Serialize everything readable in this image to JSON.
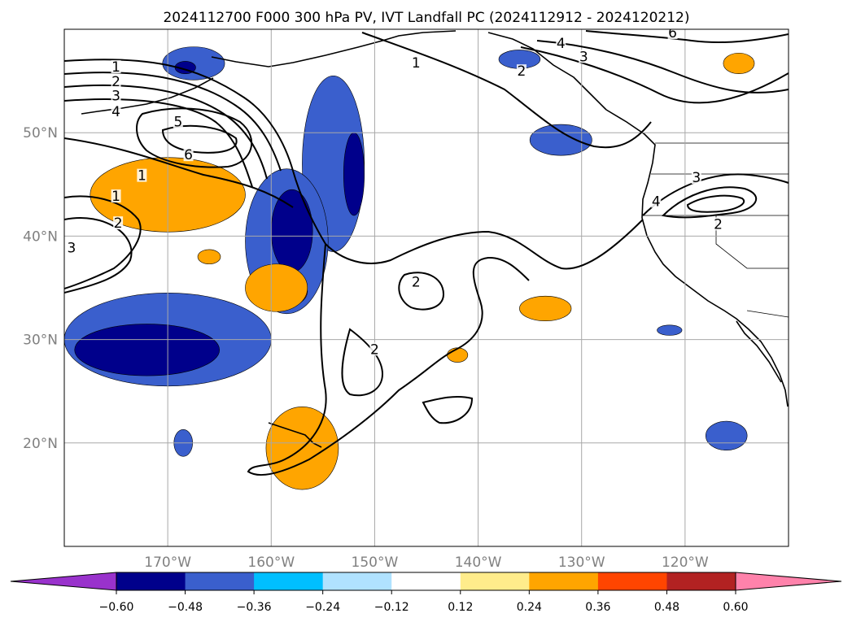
{
  "chart_data": {
    "type": "heatmap",
    "title": "2024112700 F000 300 hPa PV, IVT Landfall PC (2024112912 - 2024120212)",
    "xlabel": "",
    "ylabel": "",
    "map": {
      "lon_range": [
        -180,
        -110
      ],
      "lat_range": [
        10,
        60
      ],
      "x_ticks": [
        {
          "value": -170,
          "label": "170°W"
        },
        {
          "value": -160,
          "label": "160°W"
        },
        {
          "value": -150,
          "label": "150°W"
        },
        {
          "value": -140,
          "label": "140°W"
        },
        {
          "value": -130,
          "label": "130°W"
        },
        {
          "value": -120,
          "label": "120°W"
        }
      ],
      "y_ticks": [
        {
          "value": 20,
          "label": "20°N"
        },
        {
          "value": 30,
          "label": "30°N"
        },
        {
          "value": 40,
          "label": "40°N"
        },
        {
          "value": 50,
          "label": "50°N"
        }
      ],
      "grid": true,
      "tick_color": "#808080"
    },
    "colorbar": {
      "orientation": "horizontal",
      "extend": "both",
      "levels": [
        "−0.60",
        "−0.48",
        "−0.36",
        "−0.24",
        "−0.12",
        "0.12",
        "0.24",
        "0.36",
        "0.48",
        "0.60"
      ],
      "colors": [
        "#9932cc",
        "#00008b",
        "#3a5fcd",
        "#00bfff",
        "#b0e2ff",
        "#ffffff",
        "#ffec8b",
        "#ffa500",
        "#ff4500",
        "#b22222",
        "#ff82ab"
      ]
    },
    "contour_labels": [
      {
        "text": "1",
        "lon": -175,
        "lat": 56.3
      },
      {
        "text": "2",
        "lon": -175,
        "lat": 54.9
      },
      {
        "text": "3",
        "lon": -175,
        "lat": 53.5
      },
      {
        "text": "4",
        "lon": -175,
        "lat": 52.0
      },
      {
        "text": "5",
        "lon": -169,
        "lat": 51.0
      },
      {
        "text": "6",
        "lon": -168,
        "lat": 47.8
      },
      {
        "text": "1",
        "lon": -172.5,
        "lat": 45.8
      },
      {
        "text": "1",
        "lon": -175,
        "lat": 43.8
      },
      {
        "text": "2",
        "lon": -174.8,
        "lat": 41.2
      },
      {
        "text": "3",
        "lon": -179.3,
        "lat": 38.8
      },
      {
        "text": "1",
        "lon": -146,
        "lat": 56.7
      },
      {
        "text": "2",
        "lon": -135.8,
        "lat": 55.9
      },
      {
        "text": "4",
        "lon": -132,
        "lat": 58.6
      },
      {
        "text": "3",
        "lon": -129.8,
        "lat": 57.3
      },
      {
        "text": "6",
        "lon": -121.2,
        "lat": 59.6
      },
      {
        "text": "3",
        "lon": -118.9,
        "lat": 45.6
      },
      {
        "text": "4",
        "lon": -122.8,
        "lat": 43.3
      },
      {
        "text": "2",
        "lon": -116.8,
        "lat": 41.1
      },
      {
        "text": "2",
        "lon": -146,
        "lat": 35.5
      },
      {
        "text": "2",
        "lon": -150,
        "lat": 29.0
      }
    ],
    "shaded_regions": [
      {
        "level": "-0.36",
        "center": [
          -167.5,
          56.7
        ],
        "extent": [
          3.0,
          1.6
        ]
      },
      {
        "level": "-0.48",
        "center": [
          -168.3,
          56.3
        ],
        "extent": [
          1.0,
          0.6
        ]
      },
      {
        "level": "-0.36",
        "center": [
          -154.0,
          47.0
        ],
        "extent": [
          3.0,
          8.5
        ]
      },
      {
        "level": "-0.48",
        "center": [
          -152.0,
          46.0
        ],
        "extent": [
          1.0,
          4.0
        ]
      },
      {
        "level": "-0.36",
        "center": [
          -158.5,
          39.5
        ],
        "extent": [
          4.0,
          7.0
        ]
      },
      {
        "level": "-0.48",
        "center": [
          -158.0,
          40.5
        ],
        "extent": [
          2.0,
          4.0
        ]
      },
      {
        "level": "-0.36",
        "center": [
          -170.0,
          30.0
        ],
        "extent": [
          10.0,
          4.5
        ]
      },
      {
        "level": "-0.48",
        "center": [
          -172.0,
          29.0
        ],
        "extent": [
          7.0,
          2.5
        ]
      },
      {
        "level": "-0.36",
        "center": [
          -168.5,
          20.0
        ],
        "extent": [
          0.9,
          1.3
        ]
      },
      {
        "level": "-0.36",
        "center": [
          -132.0,
          49.3
        ],
        "extent": [
          3.0,
          1.5
        ]
      },
      {
        "level": "-0.36",
        "center": [
          -136.0,
          57.1
        ],
        "extent": [
          2.0,
          0.9
        ]
      },
      {
        "level": "-0.36",
        "center": [
          -116.0,
          20.7
        ],
        "extent": [
          2.0,
          1.4
        ]
      },
      {
        "level": "-0.36",
        "center": [
          -121.5,
          30.9
        ],
        "extent": [
          1.2,
          0.5
        ]
      },
      {
        "level": "0.36",
        "center": [
          -170.5,
          43.5
        ],
        "extent": [
          6.0,
          2.4
        ]
      },
      {
        "level": "0.24",
        "center": [
          -170.0,
          44.0
        ],
        "extent": [
          7.5,
          3.6
        ]
      },
      {
        "level": "0.36",
        "center": [
          -158.5,
          34.7
        ],
        "extent": [
          2.0,
          1.5
        ]
      },
      {
        "level": "0.24",
        "center": [
          -159.5,
          35.0
        ],
        "extent": [
          3.0,
          2.3
        ]
      },
      {
        "level": "0.24",
        "center": [
          -133.5,
          33.0
        ],
        "extent": [
          2.5,
          1.2
        ]
      },
      {
        "level": "0.24",
        "center": [
          -157.0,
          19.5
        ],
        "extent": [
          3.5,
          4.0
        ]
      },
      {
        "level": "0.24",
        "center": [
          -114.8,
          56.7
        ],
        "extent": [
          1.5,
          1.0
        ]
      },
      {
        "level": "0.24",
        "center": [
          -166.0,
          38.0
        ],
        "extent": [
          1.1,
          0.7
        ]
      },
      {
        "level": "0.24",
        "center": [
          -142.0,
          28.5
        ],
        "extent": [
          1.0,
          0.7
        ]
      }
    ]
  }
}
